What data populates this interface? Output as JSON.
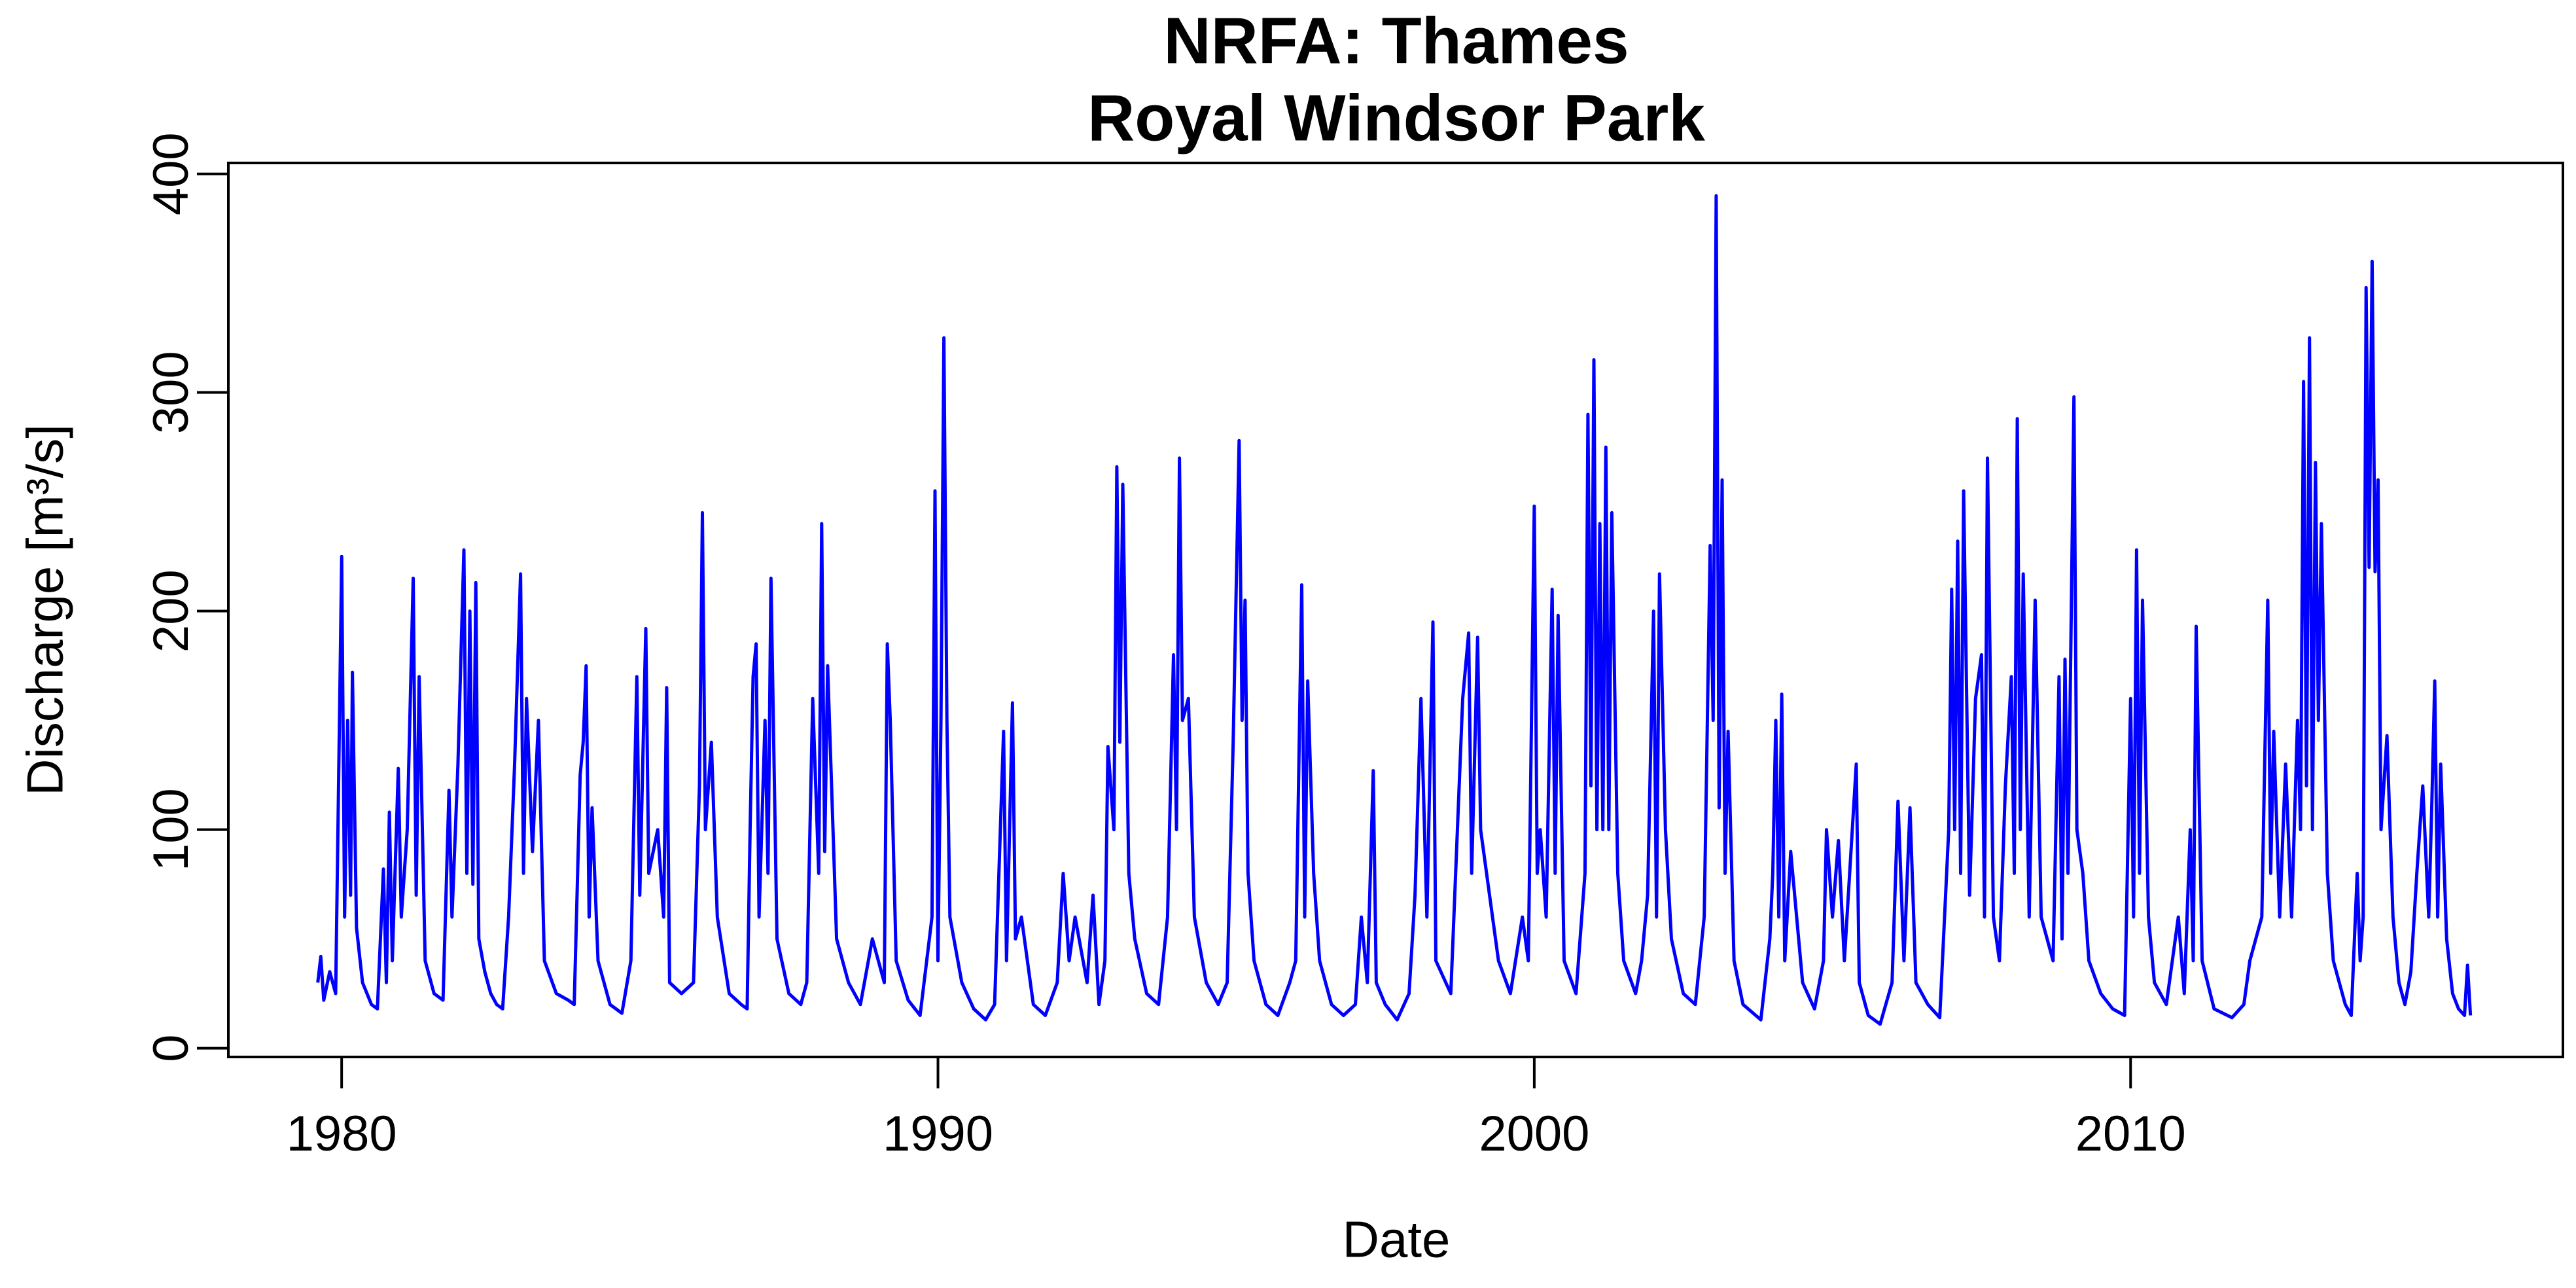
{
  "chart_data": {
    "type": "line",
    "title": "NRFA: Thames",
    "subtitle": "Royal Windsor Park",
    "x_label": "Date",
    "y_label": "Discharge  [m³/s]",
    "xlim": [
      1978.1,
      2017.25
    ],
    "ylim": [
      -4,
      405
    ],
    "xticks": [
      1980,
      1990,
      2000,
      2010
    ],
    "yticks": [
      0,
      100,
      200,
      300,
      400
    ],
    "grid": false,
    "x": [
      1979.6,
      1979.65,
      1979.7,
      1979.8,
      1979.9,
      1979.98,
      1980.0,
      1980.05,
      1980.1,
      1980.15,
      1980.18,
      1980.25,
      1980.35,
      1980.5,
      1980.6,
      1980.7,
      1980.75,
      1980.8,
      1980.85,
      1980.95,
      1981.0,
      1981.1,
      1981.2,
      1981.25,
      1981.3,
      1981.4,
      1981.55,
      1981.7,
      1981.8,
      1981.85,
      1981.95,
      1982.05,
      1982.1,
      1982.15,
      1982.2,
      1982.25,
      1982.3,
      1982.4,
      1982.5,
      1982.6,
      1982.7,
      1982.8,
      1982.9,
      1983.0,
      1983.05,
      1983.1,
      1983.2,
      1983.3,
      1983.4,
      1983.6,
      1983.8,
      1983.9,
      1984.0,
      1984.05,
      1984.1,
      1984.15,
      1984.2,
      1984.3,
      1984.5,
      1984.7,
      1984.85,
      1984.95,
      1985.0,
      1985.1,
      1985.15,
      1985.3,
      1985.4,
      1985.45,
      1985.5,
      1985.7,
      1985.9,
      1986.0,
      1986.05,
      1986.1,
      1986.2,
      1986.3,
      1986.5,
      1986.7,
      1986.8,
      1986.85,
      1986.9,
      1986.95,
      1987.0,
      1987.1,
      1987.15,
      1987.2,
      1987.3,
      1987.5,
      1987.7,
      1987.8,
      1987.9,
      1988.0,
      1988.05,
      1988.1,
      1988.15,
      1988.3,
      1988.5,
      1988.7,
      1988.9,
      1989.0,
      1989.1,
      1989.15,
      1989.2,
      1989.3,
      1989.5,
      1989.7,
      1989.9,
      1989.95,
      1990.0,
      1990.05,
      1990.1,
      1990.15,
      1990.2,
      1990.4,
      1990.6,
      1990.8,
      1990.95,
      1991.1,
      1991.15,
      1991.25,
      1991.3,
      1991.4,
      1991.6,
      1991.8,
      1992.0,
      1992.1,
      1992.2,
      1992.3,
      1992.5,
      1992.6,
      1992.7,
      1992.8,
      1992.85,
      1992.95,
      1993.0,
      1993.05,
      1993.1,
      1993.2,
      1993.3,
      1993.5,
      1993.7,
      1993.85,
      1993.95,
      1994.0,
      1994.05,
      1994.1,
      1994.2,
      1994.3,
      1994.5,
      1994.7,
      1994.85,
      1994.95,
      1995.05,
      1995.1,
      1995.15,
      1995.2,
      1995.3,
      1995.5,
      1995.7,
      1995.9,
      1996.0,
      1996.1,
      1996.15,
      1996.2,
      1996.3,
      1996.4,
      1996.6,
      1996.8,
      1997.0,
      1997.1,
      1997.2,
      1997.3,
      1997.35,
      1997.5,
      1997.7,
      1997.9,
      1998.0,
      1998.1,
      1998.2,
      1998.3,
      1998.35,
      1998.6,
      1998.8,
      1998.9,
      1998.95,
      1999.05,
      1999.1,
      1999.2,
      1999.4,
      1999.6,
      1999.8,
      1999.9,
      2000.0,
      2000.05,
      2000.1,
      2000.2,
      2000.3,
      2000.35,
      2000.4,
      2000.5,
      2000.7,
      2000.85,
      2000.9,
      2000.95,
      2001.0,
      2001.05,
      2001.1,
      2001.15,
      2001.2,
      2001.25,
      2001.3,
      2001.4,
      2001.5,
      2001.7,
      2001.8,
      2001.9,
      2002.0,
      2002.05,
      2002.1,
      2002.2,
      2002.3,
      2002.5,
      2002.7,
      2002.85,
      2002.95,
      2003.0,
      2003.05,
      2003.1,
      2003.15,
      2003.2,
      2003.25,
      2003.35,
      2003.5,
      2003.8,
      2003.95,
      2004.0,
      2004.05,
      2004.1,
      2004.15,
      2004.2,
      2004.3,
      2004.5,
      2004.7,
      2004.85,
      2004.9,
      2005.0,
      2005.1,
      2005.2,
      2005.4,
      2005.45,
      2005.6,
      2005.8,
      2006.0,
      2006.1,
      2006.2,
      2006.3,
      2006.4,
      2006.6,
      2006.8,
      2006.95,
      2007.0,
      2007.05,
      2007.1,
      2007.15,
      2007.2,
      2007.3,
      2007.4,
      2007.5,
      2007.55,
      2007.6,
      2007.7,
      2007.8,
      2007.9,
      2008.0,
      2008.05,
      2008.1,
      2008.15,
      2008.2,
      2008.3,
      2008.4,
      2008.5,
      2008.7,
      2008.8,
      2008.85,
      2008.9,
      2008.95,
      2009.05,
      2009.1,
      2009.2,
      2009.3,
      2009.5,
      2009.7,
      2009.9,
      2010.0,
      2010.05,
      2010.1,
      2010.15,
      2010.2,
      2010.3,
      2010.4,
      2010.6,
      2010.8,
      2010.9,
      2011.0,
      2011.05,
      2011.1,
      2011.2,
      2011.4,
      2011.7,
      2011.9,
      2012.0,
      2012.2,
      2012.3,
      2012.35,
      2012.4,
      2012.5,
      2012.6,
      2012.7,
      2012.8,
      2012.85,
      2012.9,
      2012.95,
      2013.0,
      2013.05,
      2013.1,
      2013.15,
      2013.2,
      2013.3,
      2013.4,
      2013.6,
      2013.7,
      2013.8,
      2013.85,
      2013.9,
      2013.95,
      2014.0,
      2014.05,
      2014.1,
      2014.15,
      2014.2,
      2014.3,
      2014.4,
      2014.5,
      2014.6,
      2014.7,
      2014.8,
      2014.9,
      2015.0,
      2015.05,
      2015.1,
      2015.15,
      2015.2,
      2015.3,
      2015.4,
      2015.5,
      2015.6,
      2015.65,
      2015.7
    ],
    "series": [
      {
        "color": "#0000ff",
        "values": [
          30,
          42,
          22,
          35,
          25,
          182,
          225,
          60,
          150,
          70,
          172,
          55,
          30,
          20,
          18,
          82,
          30,
          108,
          40,
          128,
          60,
          100,
          215,
          70,
          170,
          40,
          25,
          22,
          118,
          60,
          130,
          228,
          80,
          200,
          75,
          213,
          50,
          35,
          25,
          20,
          18,
          60,
          130,
          217,
          80,
          160,
          90,
          150,
          40,
          25,
          22,
          20,
          125,
          140,
          175,
          60,
          110,
          40,
          20,
          16,
          40,
          170,
          70,
          192,
          80,
          100,
          60,
          165,
          30,
          25,
          30,
          120,
          245,
          100,
          140,
          60,
          25,
          20,
          18,
          100,
          170,
          185,
          60,
          150,
          80,
          215,
          50,
          25,
          20,
          30,
          160,
          80,
          240,
          90,
          175,
          50,
          30,
          20,
          50,
          40,
          30,
          185,
          150,
          40,
          22,
          15,
          60,
          255,
          40,
          150,
          325,
          150,
          60,
          30,
          18,
          13,
          20,
          145,
          40,
          158,
          50,
          60,
          20,
          15,
          30,
          80,
          40,
          60,
          30,
          70,
          20,
          40,
          138,
          100,
          266,
          140,
          258,
          80,
          50,
          25,
          20,
          60,
          180,
          100,
          270,
          150,
          160,
          60,
          30,
          20,
          30,
          140,
          278,
          150,
          205,
          80,
          40,
          20,
          15,
          30,
          40,
          212,
          60,
          168,
          80,
          40,
          20,
          15,
          20,
          60,
          30,
          127,
          30,
          20,
          13,
          25,
          70,
          160,
          60,
          195,
          40,
          25,
          160,
          190,
          80,
          188,
          100,
          80,
          40,
          25,
          60,
          40,
          248,
          80,
          100,
          60,
          210,
          80,
          198,
          40,
          25,
          80,
          290,
          120,
          315,
          100,
          240,
          100,
          275,
          100,
          245,
          80,
          40,
          25,
          40,
          70,
          200,
          60,
          217,
          100,
          50,
          25,
          20,
          60,
          230,
          150,
          390,
          110,
          260,
          80,
          145,
          40,
          20,
          13,
          50,
          80,
          150,
          60,
          162,
          40,
          90,
          30,
          18,
          40,
          100,
          60,
          95,
          40,
          130,
          30,
          15,
          11,
          30,
          113,
          40,
          110,
          30,
          20,
          14,
          100,
          210,
          100,
          232,
          80,
          255,
          70,
          160,
          180,
          60,
          270,
          60,
          40,
          120,
          170,
          80,
          288,
          100,
          217,
          60,
          205,
          60,
          40,
          170,
          50,
          178,
          80,
          298,
          100,
          80,
          40,
          25,
          18,
          15,
          160,
          60,
          228,
          80,
          205,
          60,
          30,
          20,
          60,
          25,
          100,
          40,
          193,
          40,
          18,
          14,
          20,
          40,
          60,
          205,
          80,
          145,
          60,
          130,
          60,
          150,
          100,
          305,
          120,
          325,
          100,
          268,
          150,
          240,
          80,
          40,
          20,
          15,
          80,
          40,
          60,
          348,
          220,
          360,
          218,
          260,
          100,
          143,
          60,
          30,
          20,
          35,
          80,
          120,
          60,
          110,
          168,
          60,
          130,
          50,
          25,
          18,
          15,
          38,
          15
        ]
      }
    ]
  }
}
